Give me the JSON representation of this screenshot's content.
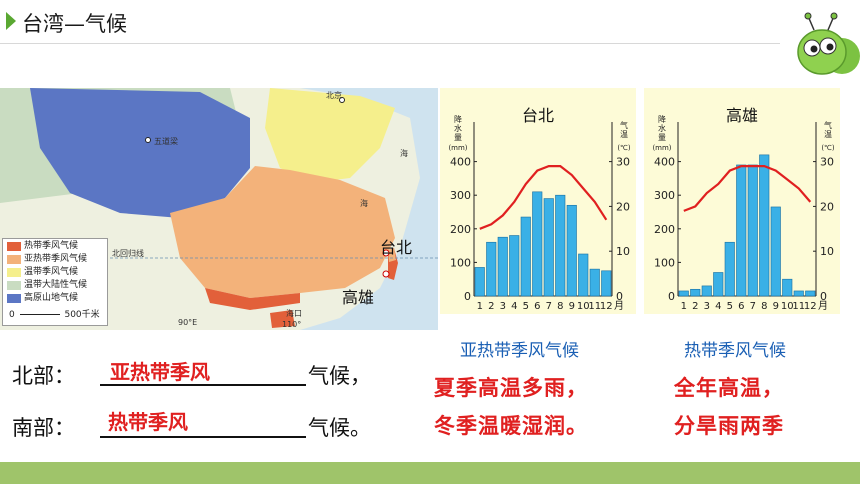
{
  "header": {
    "title": "台湾—气候"
  },
  "map": {
    "labels": {
      "beijing": "北京",
      "wudaoliang": "五道梁",
      "tropic": "北回归线",
      "haikou": "海口",
      "taibei": "台北",
      "gaoxiong": "高雄",
      "sea1": "海",
      "sea2": "海",
      "lon1": "90°E",
      "lon2": "110°"
    },
    "legend": [
      {
        "label": "热带季风气候",
        "color": "#e2603a"
      },
      {
        "label": "亚热带季风气候",
        "color": "#f3b27a"
      },
      {
        "label": "温带季风气候",
        "color": "#f5ef8c"
      },
      {
        "label": "温带大陆性气候",
        "color": "#c9dcc1"
      },
      {
        "label": "高原山地气候",
        "color": "#5b76c4"
      }
    ],
    "scale": {
      "zero": "0",
      "label": "500千米"
    }
  },
  "charts": {
    "colors": {
      "bar": "#3ab0e6",
      "line": "#e02020",
      "bg": "#fdfbd7"
    },
    "left_axis": {
      "title": "降水量",
      "unit": "(mm)",
      "ticks": [
        "400",
        "300",
        "200",
        "100",
        "0"
      ]
    },
    "right_axis": {
      "title": "气温",
      "unit": "(℃)",
      "ticks": [
        "30",
        "20",
        "10",
        "0"
      ]
    },
    "months": [
      "1",
      "2",
      "3",
      "4",
      "5",
      "6",
      "7",
      "8",
      "9",
      "10",
      "11",
      "12"
    ],
    "month_unit": "月",
    "list": [
      {
        "title": "台北",
        "precip_mm": [
          85,
          160,
          175,
          180,
          235,
          310,
          290,
          300,
          270,
          125,
          80,
          75
        ],
        "temp_c": [
          15,
          16,
          18,
          21,
          25,
          28,
          29,
          29,
          27,
          24,
          21,
          17
        ]
      },
      {
        "title": "高雄",
        "precip_mm": [
          15,
          20,
          30,
          70,
          160,
          390,
          390,
          420,
          265,
          50,
          15,
          15
        ],
        "temp_c": [
          19,
          20,
          23,
          25,
          28,
          29,
          29,
          29,
          28,
          26,
          24,
          21
        ]
      }
    ]
  },
  "labels": {
    "left": "亚热带季风气候",
    "right": "热带季风气候"
  },
  "answers": {
    "north_prefix": "北部：",
    "north_answer": "亚热带季风",
    "north_suffix": "气候，",
    "south_prefix": "南部：",
    "south_answer": "热带季风",
    "south_suffix": "气候。"
  },
  "features": {
    "left_line1": "夏季高温多雨，",
    "left_line2": "冬季温暖湿润。",
    "right_line1": "全年高温，",
    "right_line2": "分旱雨两季"
  }
}
